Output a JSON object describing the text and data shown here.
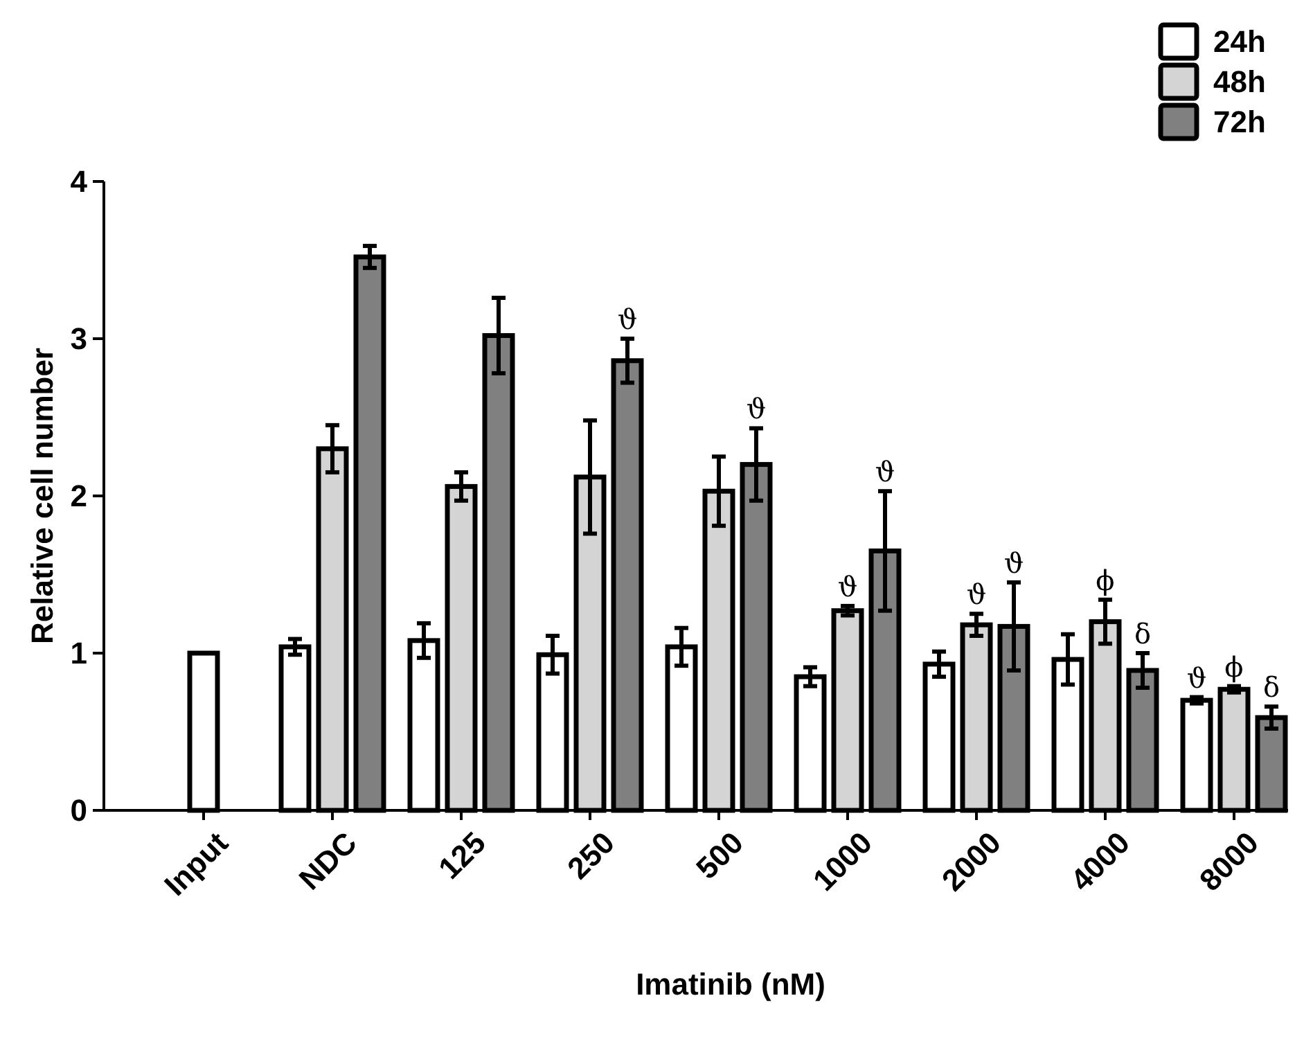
{
  "chart_data": {
    "type": "bar",
    "xlabel": "Imatinib (nM)",
    "ylabel": "Relative cell number",
    "categories": [
      "Input",
      "NDC",
      "125",
      "250",
      "500",
      "1000",
      "2000",
      "4000",
      "8000"
    ],
    "series": [
      {
        "name": "24h",
        "color": "#ffffff",
        "values": [
          1.0,
          1.04,
          1.08,
          0.99,
          1.04,
          0.85,
          0.93,
          0.96,
          0.7
        ],
        "errors": [
          null,
          0.05,
          0.11,
          0.12,
          0.12,
          0.06,
          0.08,
          0.16,
          0.02
        ],
        "value_labels": [
          null,
          null,
          null,
          null,
          null,
          null,
          null,
          null,
          "ϑ"
        ]
      },
      {
        "name": "48h",
        "color": "#d4d4d4",
        "values": [
          null,
          2.3,
          2.06,
          2.12,
          2.03,
          1.27,
          1.18,
          1.2,
          0.77
        ],
        "errors": [
          null,
          0.15,
          0.09,
          0.36,
          0.22,
          0.03,
          0.07,
          0.14,
          0.02
        ],
        "value_labels": [
          null,
          null,
          null,
          null,
          null,
          "ϑ",
          "ϑ",
          "ϕ",
          "ϕ"
        ]
      },
      {
        "name": "72h",
        "color": "#808080",
        "values": [
          null,
          3.52,
          3.02,
          2.86,
          2.2,
          1.65,
          1.17,
          0.89,
          0.59
        ],
        "errors": [
          null,
          0.07,
          0.24,
          0.14,
          0.23,
          0.38,
          0.28,
          0.11,
          0.07
        ],
        "value_labels": [
          null,
          null,
          null,
          "ϑ",
          "ϑ",
          "ϑ",
          "ϑ",
          "δ",
          "δ"
        ]
      }
    ],
    "ylim": [
      0,
      4
    ],
    "yticks": [
      0,
      1,
      2,
      3,
      4
    ],
    "legend": "top right"
  }
}
